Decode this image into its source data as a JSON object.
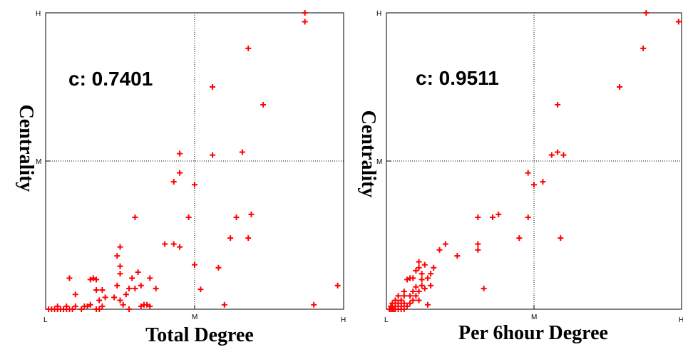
{
  "chart_data": [
    {
      "type": "scatter",
      "xlabel": "Total Degree",
      "ylabel": "Centrality",
      "annotation": "c: 0.7401",
      "xticks": [
        "L",
        "M",
        "H"
      ],
      "yticks": [
        "M",
        "H"
      ],
      "xlim": [
        0,
        1
      ],
      "ylim": [
        0,
        1
      ],
      "marker_color": "#ff0000",
      "grid": "dotted midlines",
      "points": [
        [
          0.01,
          0
        ],
        [
          0.02,
          0
        ],
        [
          0.03,
          0
        ],
        [
          0.04,
          0
        ],
        [
          0.05,
          0
        ],
        [
          0.06,
          0
        ],
        [
          0.07,
          0
        ],
        [
          0.08,
          0
        ],
        [
          0.09,
          0
        ],
        [
          0.12,
          0
        ],
        [
          0.17,
          0
        ],
        [
          0.18,
          0
        ],
        [
          0.28,
          0
        ],
        [
          0.04,
          0.01
        ],
        [
          0.07,
          0.01
        ],
        [
          0.1,
          0.01
        ],
        [
          0.13,
          0.01
        ],
        [
          0.14,
          0.01
        ],
        [
          0.19,
          0.01
        ],
        [
          0.15,
          0.015
        ],
        [
          0.26,
          0.015
        ],
        [
          0.32,
          0.01
        ],
        [
          0.33,
          0.015
        ],
        [
          0.34,
          0.015
        ],
        [
          0.35,
          0.01
        ],
        [
          0.6,
          0.015
        ],
        [
          0.9,
          0.015
        ],
        [
          0.1,
          0.05
        ],
        [
          0.18,
          0.03
        ],
        [
          0.2,
          0.04
        ],
        [
          0.23,
          0.04
        ],
        [
          0.25,
          0.03
        ],
        [
          0.27,
          0.05
        ],
        [
          0.28,
          0.07
        ],
        [
          0.3,
          0.07
        ],
        [
          0.37,
          0.07
        ],
        [
          0.24,
          0.08
        ],
        [
          0.32,
          0.08
        ],
        [
          0.17,
          0.065
        ],
        [
          0.19,
          0.065
        ],
        [
          0.08,
          0.105
        ],
        [
          0.15,
          0.1
        ],
        [
          0.16,
          0.105
        ],
        [
          0.17,
          0.1
        ],
        [
          0.29,
          0.105
        ],
        [
          0.35,
          0.105
        ],
        [
          0.25,
          0.12
        ],
        [
          0.31,
          0.125
        ],
        [
          0.25,
          0.145
        ],
        [
          0.24,
          0.18
        ],
        [
          0.25,
          0.21
        ],
        [
          0.58,
          0.14
        ],
        [
          0.52,
          0.067
        ],
        [
          0.98,
          0.08
        ],
        [
          0.4,
          0.22
        ],
        [
          0.43,
          0.22
        ],
        [
          0.45,
          0.21
        ],
        [
          0.62,
          0.24
        ],
        [
          0.64,
          0.31
        ],
        [
          0.68,
          0.24
        ],
        [
          0.69,
          0.32
        ],
        [
          0.3,
          0.31
        ],
        [
          0.48,
          0.31
        ],
        [
          0.5,
          0.15
        ],
        [
          0.5,
          0.42
        ],
        [
          0.43,
          0.43
        ],
        [
          0.45,
          0.46
        ],
        [
          0.45,
          0.525
        ],
        [
          0.56,
          0.52
        ],
        [
          0.66,
          0.53
        ],
        [
          0.73,
          0.69
        ],
        [
          0.56,
          0.75
        ],
        [
          0.68,
          0.88
        ],
        [
          0.87,
          0.97
        ],
        [
          0.87,
          1.0
        ]
      ]
    },
    {
      "type": "scatter",
      "xlabel": "Per 6hour Degree",
      "ylabel": "Centrality",
      "annotation": "c: 0.9511",
      "xticks": [
        "L",
        "M",
        "H"
      ],
      "yticks": [
        "M",
        "H"
      ],
      "xlim": [
        0,
        1
      ],
      "ylim": [
        0,
        1
      ],
      "marker_color": "#ff0000",
      "grid": "dotted midlines",
      "points": [
        [
          0.01,
          0
        ],
        [
          0.015,
          0
        ],
        [
          0.02,
          0
        ],
        [
          0.025,
          0
        ],
        [
          0.03,
          0
        ],
        [
          0.04,
          0
        ],
        [
          0.05,
          0
        ],
        [
          0.06,
          0
        ],
        [
          0.015,
          0.01
        ],
        [
          0.03,
          0.01
        ],
        [
          0.05,
          0.01
        ],
        [
          0.07,
          0.01
        ],
        [
          0.02,
          0.02
        ],
        [
          0.04,
          0.02
        ],
        [
          0.06,
          0.02
        ],
        [
          0.08,
          0.02
        ],
        [
          0.03,
          0.03
        ],
        [
          0.05,
          0.03
        ],
        [
          0.09,
          0.03
        ],
        [
          0.11,
          0.03
        ],
        [
          0.14,
          0.015
        ],
        [
          0.04,
          0.045
        ],
        [
          0.06,
          0.045
        ],
        [
          0.08,
          0.045
        ],
        [
          0.1,
          0.045
        ],
        [
          0.06,
          0.06
        ],
        [
          0.09,
          0.06
        ],
        [
          0.11,
          0.06
        ],
        [
          0.13,
          0.07
        ],
        [
          0.1,
          0.075
        ],
        [
          0.12,
          0.08
        ],
        [
          0.15,
          0.08
        ],
        [
          0.07,
          0.1
        ],
        [
          0.08,
          0.105
        ],
        [
          0.09,
          0.105
        ],
        [
          0.12,
          0.1
        ],
        [
          0.14,
          0.105
        ],
        [
          0.1,
          0.13
        ],
        [
          0.12,
          0.12
        ],
        [
          0.15,
          0.12
        ],
        [
          0.11,
          0.14
        ],
        [
          0.13,
          0.15
        ],
        [
          0.11,
          0.16
        ],
        [
          0.16,
          0.14
        ],
        [
          0.18,
          0.2
        ],
        [
          0.2,
          0.22
        ],
        [
          0.24,
          0.18
        ],
        [
          0.31,
          0.2
        ],
        [
          0.31,
          0.22
        ],
        [
          0.31,
          0.31
        ],
        [
          0.36,
          0.31
        ],
        [
          0.38,
          0.32
        ],
        [
          0.45,
          0.24
        ],
        [
          0.33,
          0.07
        ],
        [
          0.48,
          0.31
        ],
        [
          0.48,
          0.46
        ],
        [
          0.5,
          0.42
        ],
        [
          0.53,
          0.43
        ],
        [
          0.59,
          0.24
        ],
        [
          0.56,
          0.52
        ],
        [
          0.58,
          0.53
        ],
        [
          0.6,
          0.52
        ],
        [
          0.58,
          0.69
        ],
        [
          0.79,
          0.75
        ],
        [
          0.87,
          0.88
        ],
        [
          0.88,
          1.0
        ],
        [
          0.99,
          0.97
        ]
      ]
    }
  ]
}
